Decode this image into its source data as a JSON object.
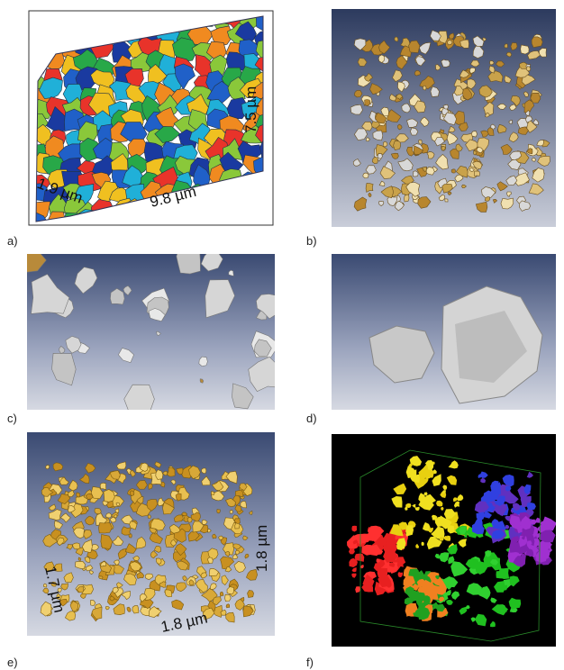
{
  "panels": [
    {
      "label": "a)",
      "annotations": [
        "1.9 µm",
        "9.8 µm",
        "7.5 µm"
      ]
    },
    {
      "label": "b)"
    },
    {
      "label": "c)"
    },
    {
      "label": "d)"
    },
    {
      "label": "e)",
      "annotations": [
        "1.7 µm",
        "1.8 µm",
        "1.8 µm"
      ]
    },
    {
      "label": "f)"
    }
  ]
}
